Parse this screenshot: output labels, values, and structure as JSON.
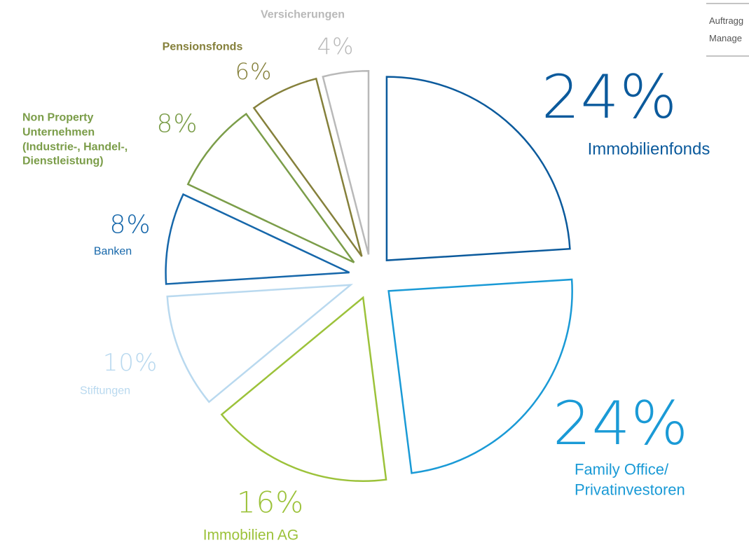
{
  "chart_data": {
    "type": "pie",
    "categories": [
      "Immobilienfonds",
      "Family Office/\nPrivatinvestoren",
      "Immobilien AG",
      "Stiftungen",
      "Banken",
      "Non Property\nUnternehmen\n(Industrie-, Handel-,\nDienstleistung)",
      "Pensionsfonds",
      "Versicherungen"
    ],
    "values": [
      24,
      24,
      16,
      10,
      8,
      8,
      6,
      4
    ],
    "value_labels": [
      "24%",
      "24%",
      "16%",
      "10%",
      "8%",
      "8%",
      "6%",
      "4%"
    ],
    "colors": [
      "#0b5a9c",
      "#1a9ad6",
      "#9cc23a",
      "#b9d9ef",
      "#1667aa",
      "#7b9d49",
      "#85803b",
      "#b9b9b9"
    ]
  },
  "corner_text": [
    "Auftragg",
    "Manage"
  ]
}
